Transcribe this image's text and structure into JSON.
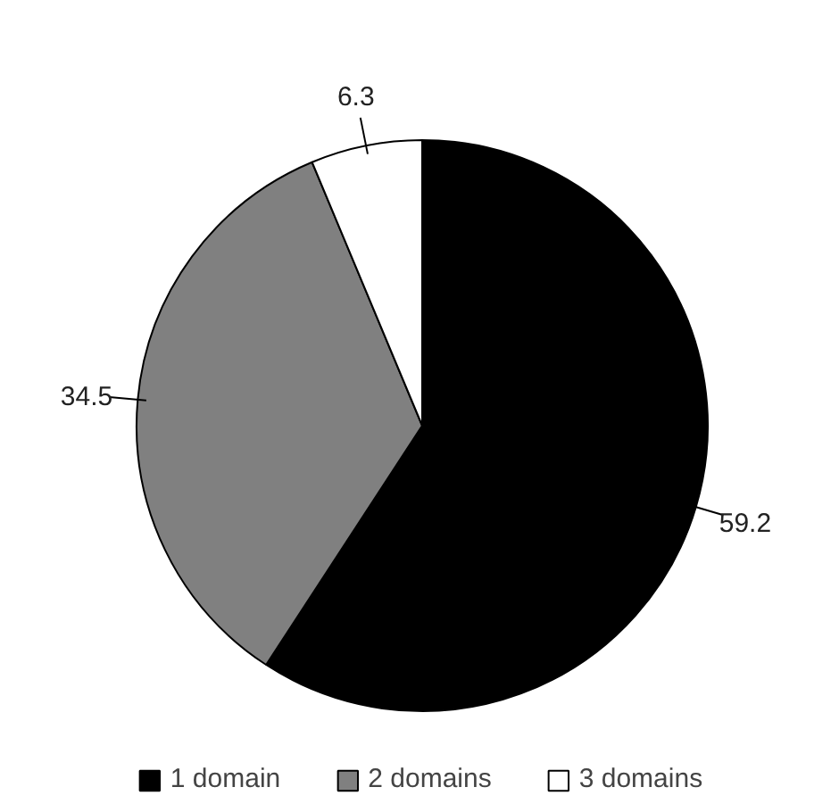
{
  "chart_data": {
    "type": "pie",
    "categories": [
      "1 domain",
      "2 domains",
      "3 domains"
    ],
    "values": [
      59.2,
      34.5,
      6.3
    ],
    "colors": [
      "#000000",
      "#808080",
      "#ffffff"
    ],
    "data_labels": true,
    "legend": "bottom"
  }
}
